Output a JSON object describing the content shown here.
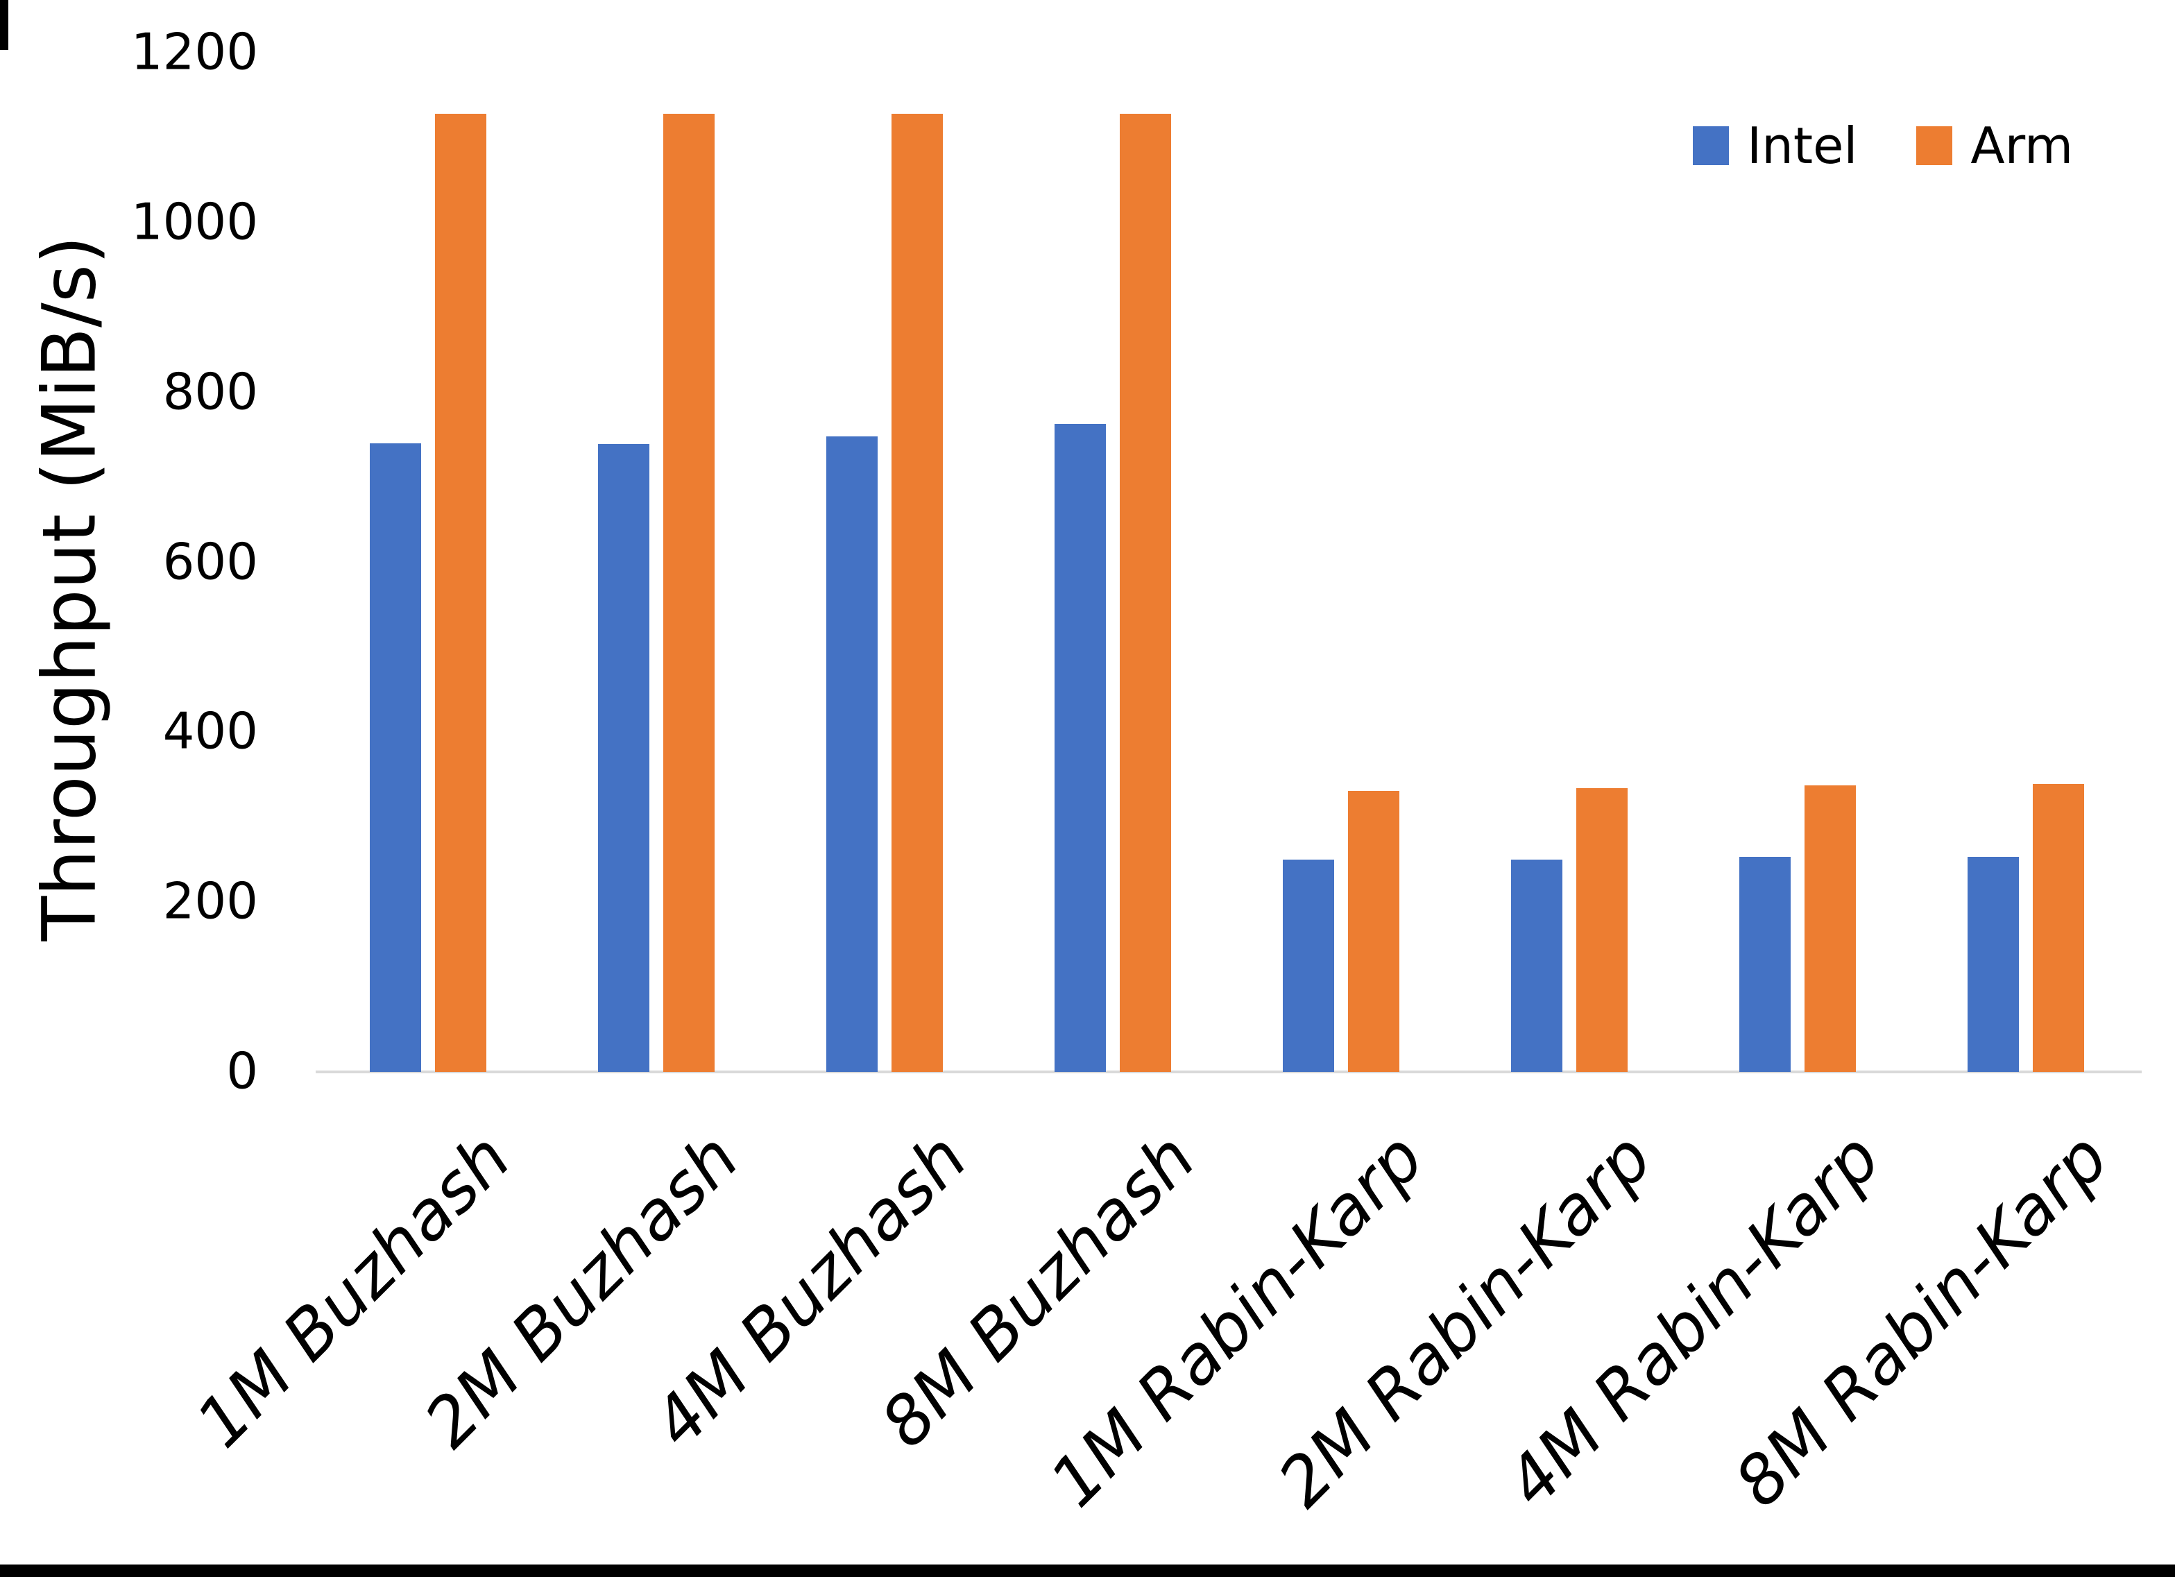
{
  "chart_data": {
    "type": "bar",
    "title": "",
    "categories": [
      "1M Buzhash",
      "2M Buzhash",
      "4M Buzhash",
      "8M Buzhash",
      "1M Rabin-Karp",
      "2M Rabin-Karp",
      "4M Rabin-Karp",
      "8M Rabin-Karp"
    ],
    "series": [
      {
        "name": "Intel",
        "color": "#4472C4",
        "values": [
          740,
          739,
          748,
          763,
          250,
          250,
          253,
          253
        ]
      },
      {
        "name": "Arm",
        "color": "#ED7D31",
        "values": [
          1128,
          1128,
          1128,
          1128,
          331,
          334,
          337,
          339
        ]
      }
    ],
    "xlabel": "",
    "ylabel": "Throughput (MiB/s)",
    "ylim": [
      0,
      1200
    ],
    "yticks": [
      0,
      200,
      400,
      600,
      800,
      1000,
      1200
    ],
    "grid": false,
    "legend_position": "top-right",
    "axis_line_color": "#D9D9D9",
    "category_label_style": "italic, rotated 45deg"
  }
}
